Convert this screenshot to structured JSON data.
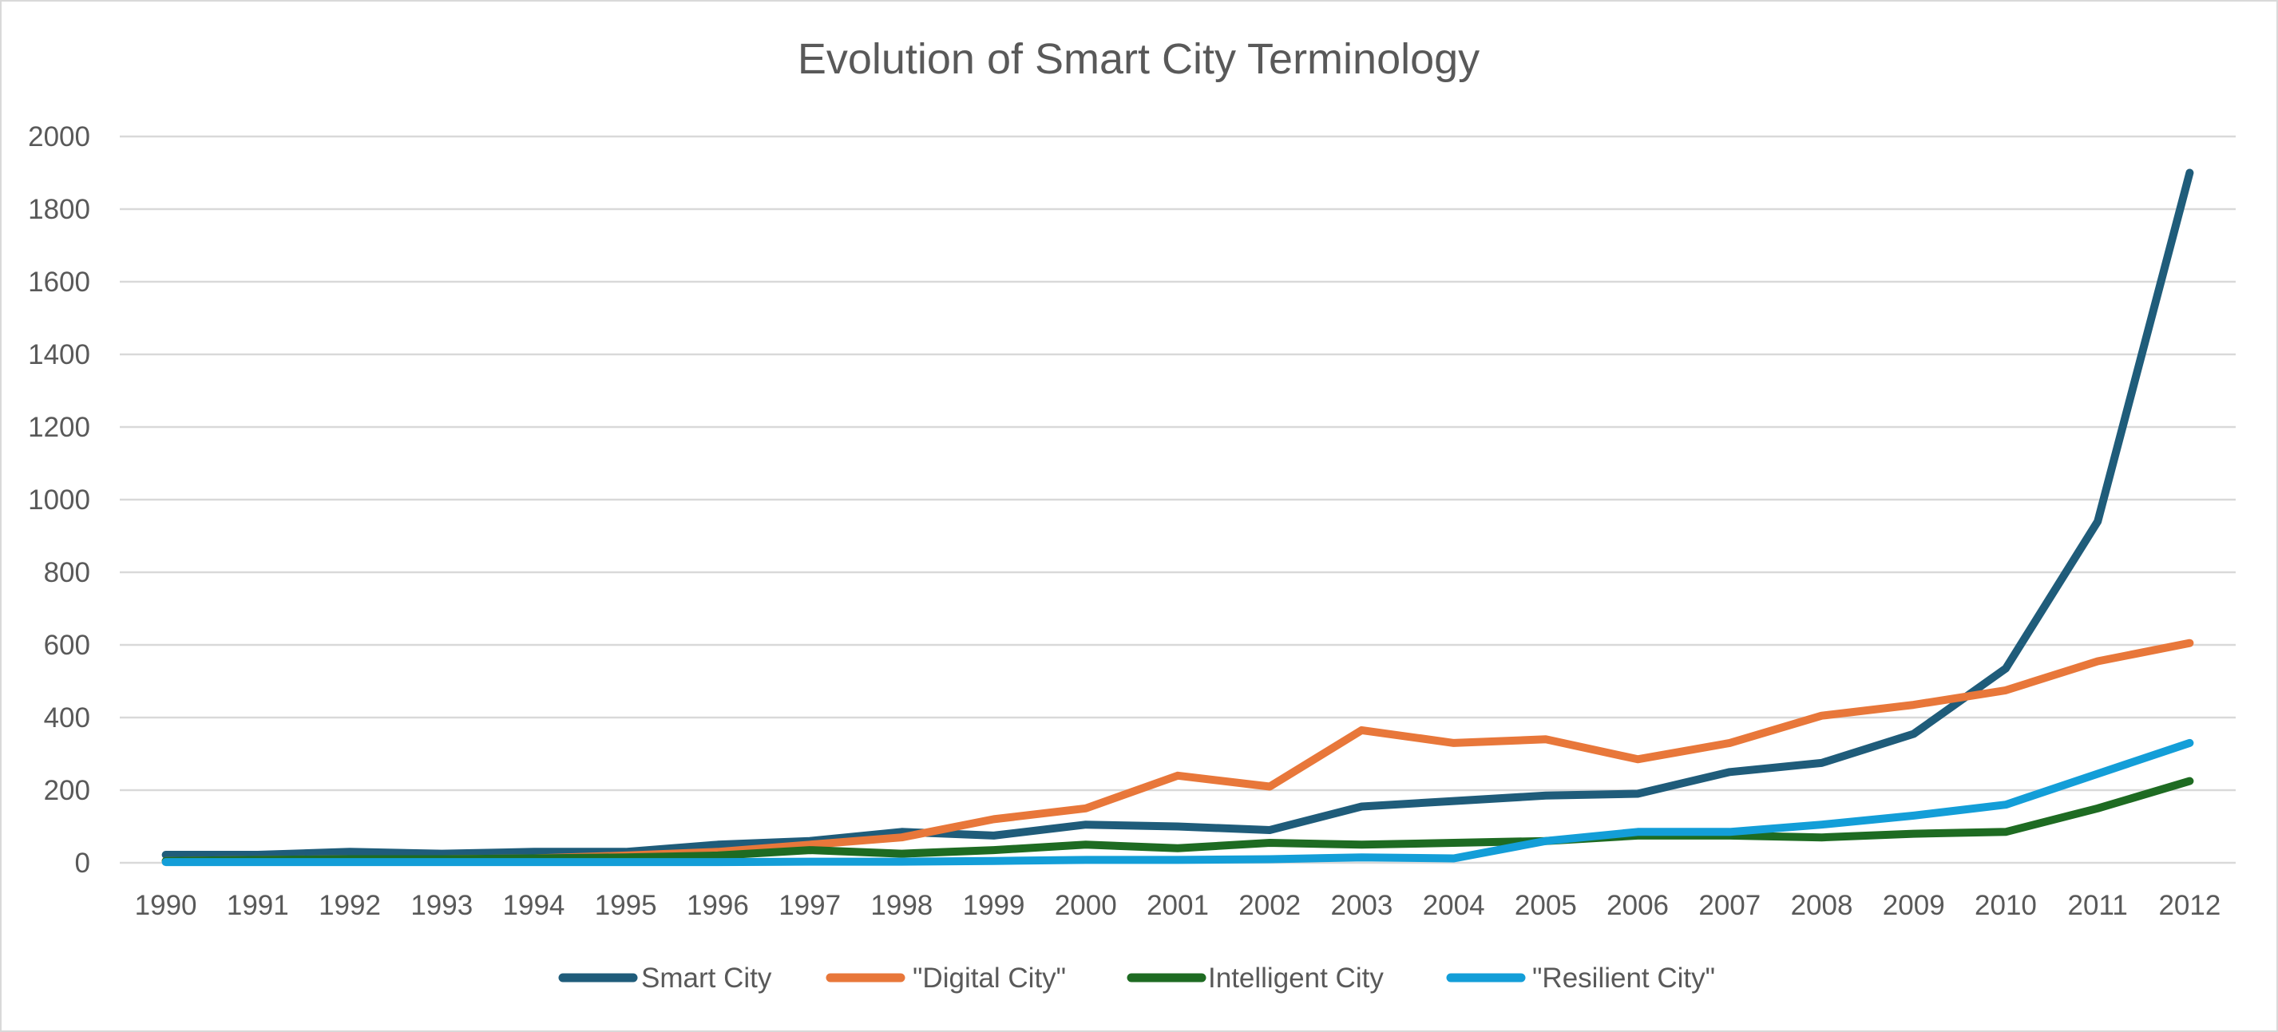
{
  "chart_data": {
    "type": "line",
    "title": "Evolution of Smart City Terminology",
    "xlabel": "",
    "ylabel": "",
    "ylim": [
      0,
      2000
    ],
    "yticks": [
      0,
      200,
      400,
      600,
      800,
      1000,
      1200,
      1400,
      1600,
      1800,
      2000
    ],
    "grid": true,
    "legend": "bottom",
    "categories": [
      "1990",
      "1991",
      "1992",
      "1993",
      "1994",
      "1995",
      "1996",
      "1997",
      "1998",
      "1999",
      "2000",
      "2001",
      "2002",
      "2003",
      "2004",
      "2005",
      "2006",
      "2007",
      "2008",
      "2009",
      "2010",
      "2011",
      "2012"
    ],
    "series": [
      {
        "name": "Smart City",
        "color": "#1f5c7a",
        "values": [
          22,
          22,
          30,
          25,
          30,
          30,
          50,
          60,
          85,
          75,
          105,
          100,
          90,
          155,
          170,
          185,
          190,
          250,
          275,
          355,
          535,
          940,
          1900
        ]
      },
      {
        "name": "\"Digital City\"",
        "color": "#e8773a",
        "values": [
          5,
          8,
          10,
          10,
          12,
          20,
          30,
          50,
          70,
          120,
          150,
          240,
          210,
          365,
          330,
          340,
          285,
          330,
          405,
          435,
          475,
          555,
          605
        ]
      },
      {
        "name": "Intelligent City",
        "color": "#1e6b22",
        "values": [
          5,
          8,
          10,
          10,
          12,
          15,
          20,
          35,
          25,
          35,
          50,
          40,
          55,
          50,
          55,
          60,
          75,
          75,
          70,
          80,
          85,
          150,
          225
        ]
      },
      {
        "name": "\"Resilient City\"",
        "color": "#139ed8",
        "values": [
          2,
          2,
          2,
          2,
          2,
          2,
          2,
          3,
          3,
          5,
          8,
          8,
          10,
          15,
          12,
          60,
          85,
          85,
          105,
          130,
          160,
          245,
          330
        ]
      }
    ]
  }
}
